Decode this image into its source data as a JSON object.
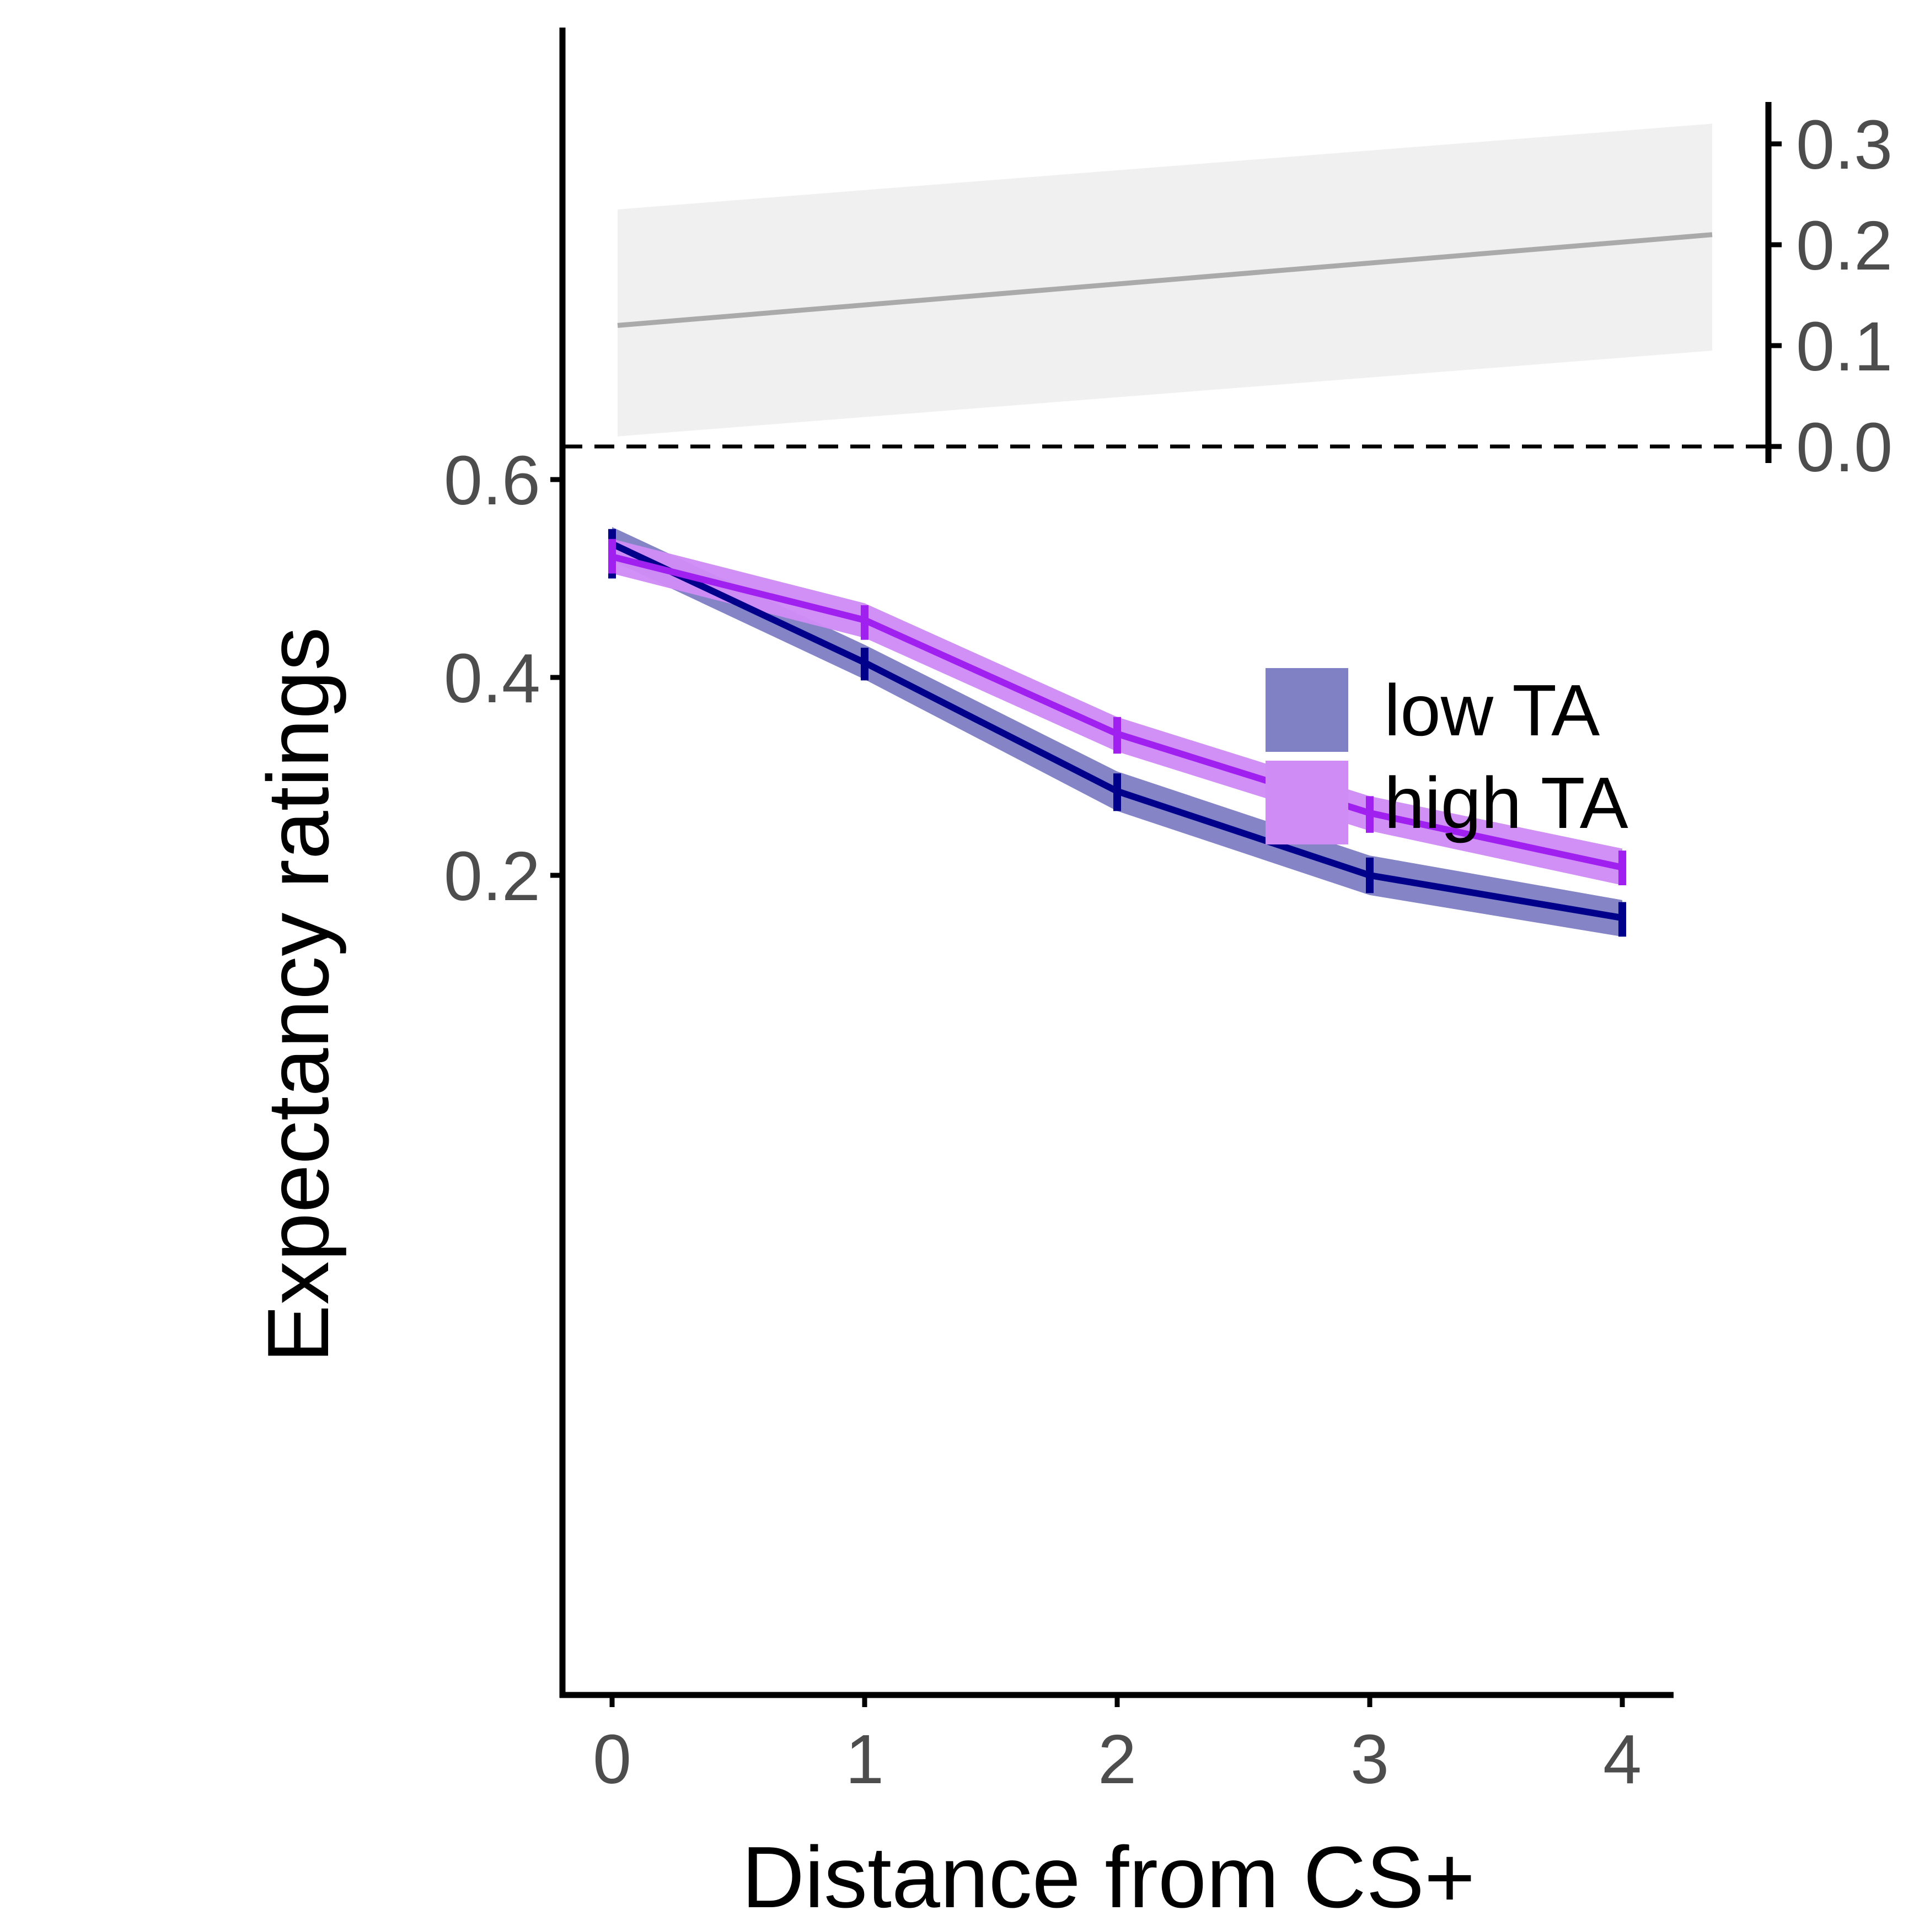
{
  "chart_data": {
    "type": "line",
    "xlabel": "Distance from CS+",
    "ylabel": "Expectancy ratings",
    "x": [
      0,
      1,
      2,
      3,
      4
    ],
    "xticks": [
      "0",
      "1",
      "2",
      "3",
      "4"
    ],
    "ylim": [
      0.09,
      0.61
    ],
    "yticks": [
      "0.2",
      "0.4",
      "0.6"
    ],
    "grid": false,
    "legend_position": "top-right",
    "series": [
      {
        "name": "low TA",
        "line_color": "#00008b",
        "band_color": "#8080c5",
        "values": [
          0.535,
          0.415,
          0.285,
          0.2,
          0.157
        ],
        "lower": [
          0.518,
          0.398,
          0.265,
          0.18,
          0.138
        ],
        "upper": [
          0.552,
          0.433,
          0.305,
          0.22,
          0.175
        ],
        "err_low": [
          0.5,
          0.397,
          0.265,
          0.182,
          0.138
        ],
        "err_high": [
          0.55,
          0.43,
          0.303,
          0.218,
          0.173
        ]
      },
      {
        "name": "high TA",
        "line_color": "#a020f0",
        "band_color": "#cf8cf5",
        "values": [
          0.522,
          0.458,
          0.343,
          0.263,
          0.208
        ],
        "lower": [
          0.505,
          0.44,
          0.325,
          0.245,
          0.19
        ],
        "upper": [
          0.54,
          0.475,
          0.36,
          0.28,
          0.227
        ],
        "err_low": [
          0.505,
          0.438,
          0.323,
          0.243,
          0.19
        ],
        "err_high": [
          0.54,
          0.473,
          0.36,
          0.28,
          0.225
        ]
      }
    ],
    "inset": {
      "type": "area",
      "yticks": [
        "0.0",
        "0.1",
        "0.2",
        "0.3"
      ],
      "ylim": [
        0,
        0.33
      ],
      "xrange": [
        0,
        4.35
      ],
      "line_start": 0.12,
      "line_end": 0.21,
      "band_lower_start": 0.01,
      "band_lower_end": 0.095,
      "band_upper_start": 0.235,
      "band_upper_end": 0.32,
      "line_color": "#aaaaaa",
      "band_color": "#f0f0f0"
    }
  }
}
